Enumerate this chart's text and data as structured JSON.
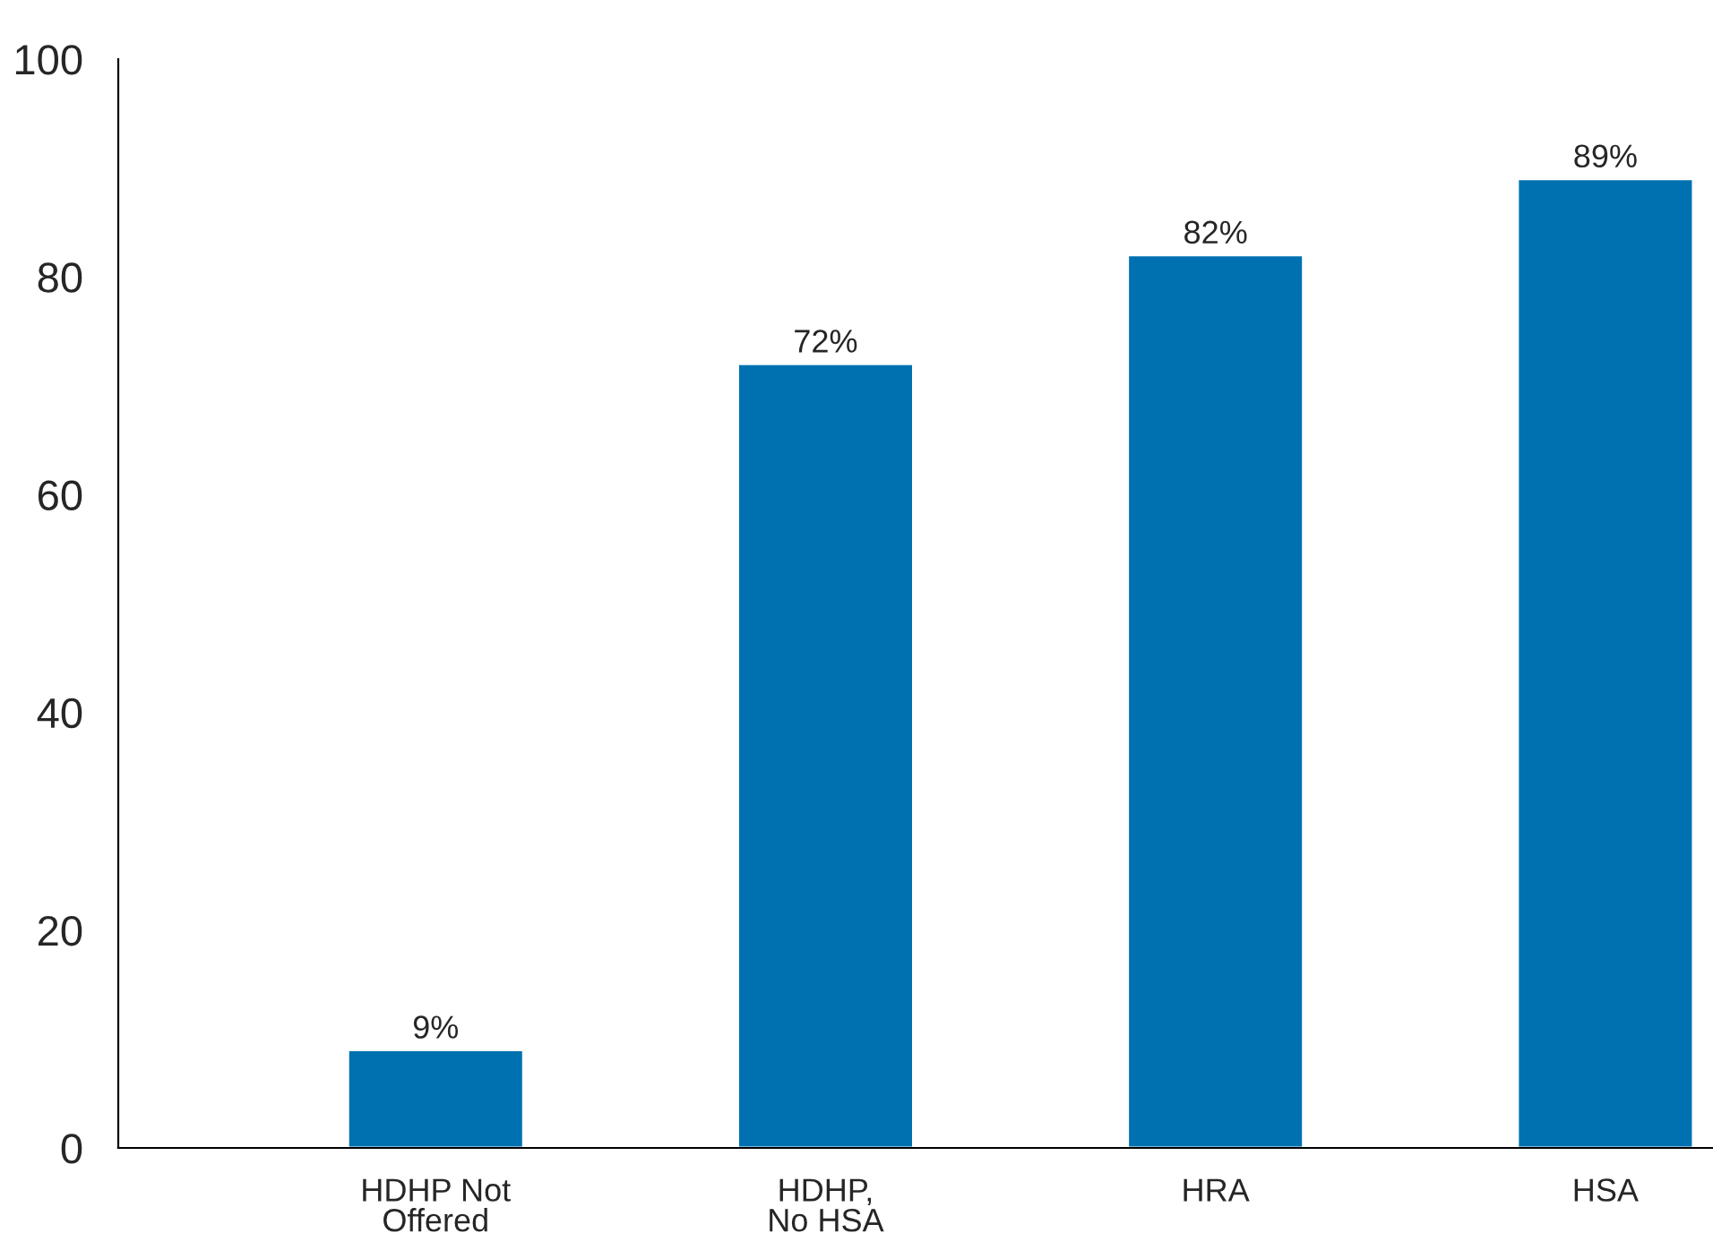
{
  "chart_data": {
    "type": "bar",
    "categories": [
      "HDHP Not\nOffered",
      "HDHP,\nNo HSA",
      "HRA",
      "HSA"
    ],
    "values": [
      9,
      72,
      82,
      89
    ],
    "value_labels": [
      "9%",
      "72%",
      "82%",
      "89%"
    ],
    "color": "#0071b0",
    "ylim": [
      0,
      100
    ],
    "yticks": [
      0,
      20,
      40,
      60,
      80,
      100
    ],
    "grid": false
  }
}
